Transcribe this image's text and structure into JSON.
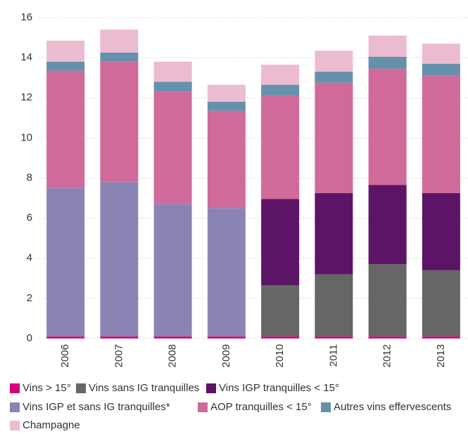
{
  "chart_data": {
    "type": "stacked_bar",
    "categories": [
      "2006",
      "2007",
      "2008",
      "2009",
      "2010",
      "2011",
      "2012",
      "2013"
    ],
    "series": [
      {
        "name": "Vins > 15°",
        "color": "#d6007a",
        "values": [
          0.1,
          0.1,
          0.1,
          0.1,
          0.1,
          0.1,
          0.1,
          0.1
        ]
      },
      {
        "name": "Vins sans IG tranquilles",
        "color": "#666666",
        "values": [
          0,
          0,
          0,
          0,
          2.55,
          3.1,
          3.6,
          3.3
        ]
      },
      {
        "name": "Vins IGP tranquilles < 15°",
        "color": "#5c1566",
        "values": [
          0,
          0,
          0,
          0,
          4.3,
          4.05,
          3.95,
          3.85
        ]
      },
      {
        "name": "Vins IGP et sans IG tranquilles*",
        "color": "#8a84b5",
        "values": [
          7.4,
          7.7,
          6.6,
          6.4,
          0,
          0,
          0,
          0
        ]
      },
      {
        "name": "AOP tranquilles < 15°",
        "color": "#d06a9a",
        "values": [
          5.85,
          6.0,
          5.6,
          4.85,
          5.15,
          5.5,
          5.8,
          5.85
        ]
      },
      {
        "name": "Autres vins effervescents",
        "color": "#6690ab",
        "values": [
          0.45,
          0.45,
          0.5,
          0.45,
          0.55,
          0.55,
          0.6,
          0.6
        ]
      },
      {
        "name": "Champagne",
        "color": "#ebbcd0",
        "values": [
          1.05,
          1.15,
          1.0,
          0.85,
          1.0,
          1.05,
          1.05,
          1.0
        ]
      }
    ],
    "ylim": [
      0,
      16
    ],
    "yticks": [
      0,
      2,
      4,
      6,
      8,
      10,
      12,
      14,
      16
    ],
    "grid": true
  }
}
